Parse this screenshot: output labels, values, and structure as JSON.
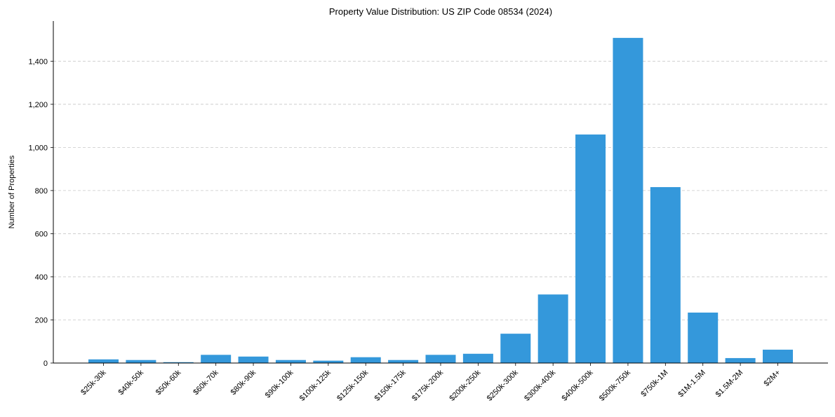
{
  "chart_data": {
    "type": "bar",
    "title": "Property Value Distribution: US ZIP Code 08534 (2024)",
    "xlabel": "",
    "ylabel": "Number of Properties",
    "ylim": [
      0,
      1580
    ],
    "yticks": [
      0,
      200,
      400,
      600,
      800,
      1000,
      1200,
      1400
    ],
    "ytick_labels": [
      "0",
      "200",
      "400",
      "600",
      "800",
      "1,000",
      "1,200",
      "1,400"
    ],
    "grid": "y-dashed",
    "bar_color": "#3498db",
    "categories": [
      "$25k-30k",
      "$40k-50k",
      "$50k-60k",
      "$60k-70k",
      "$80k-90k",
      "$90k-100k",
      "$100k-125k",
      "$125k-150k",
      "$150k-175k",
      "$175k-200k",
      "$200k-250k",
      "$250k-300k",
      "$300k-400k",
      "$400k-500k",
      "$500k-750k",
      "$750k-1M",
      "$1M-1.5M",
      "$1.5M-2M",
      "$2M+"
    ],
    "values": [
      17,
      14,
      4,
      38,
      30,
      14,
      11,
      27,
      14,
      38,
      43,
      136,
      318,
      1060,
      1508,
      816,
      234,
      23,
      62
    ]
  }
}
